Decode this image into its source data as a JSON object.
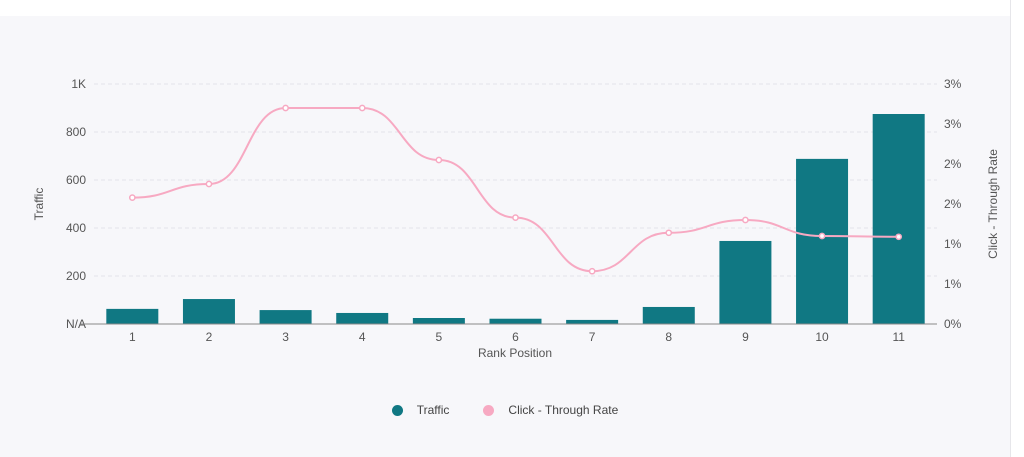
{
  "chart_data": {
    "type": "bar+line",
    "categories": [
      "1",
      "2",
      "3",
      "4",
      "5",
      "6",
      "7",
      "8",
      "9",
      "10",
      "11"
    ],
    "xlabel": "Rank Position",
    "series": [
      {
        "name": "Traffic",
        "type": "bar",
        "axis": "left",
        "color": "#107883",
        "values": [
          63,
          104,
          58,
          46,
          25,
          22,
          17,
          71,
          346,
          688,
          875
        ]
      },
      {
        "name": "Click - Through Rate",
        "type": "line",
        "axis": "right",
        "color": "#f7a9c2",
        "values": [
          1.58,
          1.75,
          2.7,
          2.7,
          2.05,
          1.33,
          0.66,
          1.14,
          1.3,
          1.1,
          1.09
        ]
      }
    ],
    "left_axis": {
      "label": "Traffic",
      "range": [
        0,
        1000
      ],
      "ticks": [
        0,
        200,
        400,
        600,
        800,
        1000
      ],
      "tick_labels": [
        "N/A",
        "200",
        "400",
        "600",
        "800",
        "1K"
      ]
    },
    "right_axis": {
      "label": "Click - Through Rate",
      "range": [
        0,
        3
      ],
      "ticks": [
        0,
        0.5,
        1,
        1.5,
        2,
        2.5,
        3
      ],
      "tick_labels": [
        "0%",
        "1%",
        "1%",
        "2%",
        "2%",
        "3%",
        "3%"
      ]
    },
    "grid": true,
    "legend": "bottom"
  }
}
